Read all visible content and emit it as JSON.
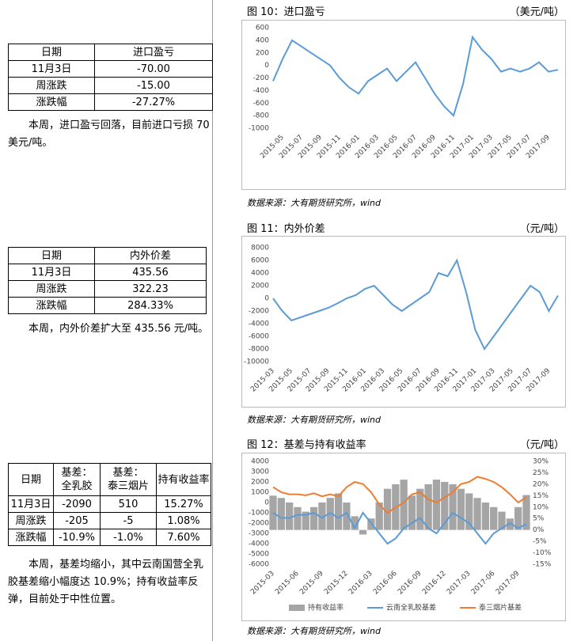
{
  "tables": [
    {
      "rows": [
        [
          "日期",
          "进口盈亏"
        ],
        [
          "11月3日",
          "-70.00"
        ],
        [
          "周涨跌",
          "-15.00"
        ],
        [
          "涨跌幅",
          "-27.27%"
        ]
      ]
    },
    {
      "rows": [
        [
          "日期",
          "内外价差"
        ],
        [
          "11月3日",
          "435.56"
        ],
        [
          "周涨跌",
          "322.23"
        ],
        [
          "涨跌幅",
          "284.33%"
        ]
      ]
    },
    {
      "rows": [
        [
          "日期",
          "基差：\n全乳胶",
          "基差：\n泰三烟片",
          "持有收益率"
        ],
        [
          "11月3日",
          "-2090",
          "510",
          "15.27%"
        ],
        [
          "周涨跌",
          "-205",
          "-5",
          "1.08%"
        ],
        [
          "涨跌幅",
          "-10.9%",
          "-1.0%",
          "7.60%"
        ]
      ]
    }
  ],
  "notes": [
    "本周，进口盈亏回落，目前进口亏损 70 美元/吨。",
    "本周，内外价差扩大至 435.56 元/吨。",
    "本周，基差均缩小，其中云南国营全乳胶基差缩小幅度达 10.9%；持有收益率反弹，目前处于中性位置。"
  ],
  "chart_data": [
    {
      "type": "line",
      "title": "图 10：进口盈亏",
      "unit": "（美元/吨）",
      "source": "数据来源：大有期货研究所，wind",
      "categories": [
        null,
        "2015-05",
        null,
        "2015-07",
        null,
        "2015-09",
        null,
        "2015-11",
        null,
        "2016-01",
        null,
        "2016-03",
        null,
        "2016-05",
        null,
        "2016-07",
        null,
        "2016-09",
        null,
        "2016-11",
        null,
        "2017-01",
        null,
        "2017-03",
        null,
        "2017-05",
        null,
        "2017-07",
        null,
        "2017-09",
        null
      ],
      "series": [
        {
          "name": "进口盈亏",
          "color": "#5b9bd5",
          "values": [
            -250,
            100,
            400,
            300,
            200,
            100,
            0,
            -200,
            -350,
            -450,
            -250,
            -150,
            -50,
            -250,
            -100,
            50,
            -200,
            -450,
            -650,
            -800,
            -300,
            450,
            250,
            100,
            -100,
            -50,
            -100,
            -50,
            50,
            -100,
            -70
          ]
        }
      ],
      "ylim": [
        -1000,
        600
      ],
      "yticks": [
        -1000,
        -800,
        -600,
        -400,
        -200,
        0,
        200,
        400,
        600
      ]
    },
    {
      "type": "line",
      "title": "图 11：内外价差",
      "unit": "（元/吨）",
      "source": "数据来源：大有期货研究所，wind",
      "categories": [
        "2015-03",
        null,
        "2015-05",
        null,
        "2015-07",
        null,
        "2015-09",
        null,
        "2015-11",
        null,
        "2016-01",
        null,
        "2016-03",
        null,
        "2016-05",
        null,
        "2016-07",
        null,
        "2016-09",
        null,
        "2016-11",
        null,
        "2017-01",
        null,
        "2017-03",
        null,
        "2017-05",
        null,
        "2017-07",
        null,
        "2017-09",
        null
      ],
      "series": [
        {
          "name": "内外价差",
          "color": "#5b9bd5",
          "values": [
            0,
            -2000,
            -3500,
            -3000,
            -2500,
            -2000,
            -1500,
            -800,
            0,
            500,
            1500,
            2000,
            500,
            -1000,
            -2000,
            -1000,
            0,
            1000,
            4000,
            3500,
            6000,
            1000,
            -5000,
            -8000,
            -6000,
            -4000,
            -2000,
            0,
            2000,
            1000,
            -2000,
            436
          ]
        }
      ],
      "ylim": [
        -10000,
        8000
      ],
      "yticks": [
        -10000,
        -8000,
        -6000,
        -4000,
        -2000,
        0,
        2000,
        4000,
        6000,
        8000
      ]
    },
    {
      "type": "line",
      "title": "图 12：基差与持有收益率",
      "unit": "（元/吨）",
      "source": "数据来源：大有期货研究所，wind",
      "legend": "bottom",
      "categories": [
        "2015-03",
        null,
        null,
        "2015-06",
        null,
        null,
        "2015-09",
        null,
        null,
        "2015-12",
        null,
        null,
        "2016-03",
        null,
        null,
        "2016-06",
        null,
        null,
        "2016-09",
        null,
        null,
        "2016-12",
        null,
        null,
        "2017-03",
        null,
        null,
        "2017-06",
        null,
        null,
        "2017-09",
        null
      ],
      "series": [
        {
          "name": "持有收益率",
          "type": "bar",
          "axis": "y2",
          "color": "#a5a5a5",
          "values": [
            15,
            14,
            12,
            10,
            8,
            10,
            12,
            14,
            16,
            12,
            6,
            -2,
            5,
            12,
            18,
            20,
            22,
            15,
            18,
            20,
            22,
            21,
            20,
            18,
            16,
            14,
            12,
            10,
            8,
            5,
            10,
            15.27
          ]
        },
        {
          "name": "云南全乳胶基差",
          "color": "#5b9bd5",
          "values": [
            -1000,
            -1500,
            -1500,
            -1200,
            -1200,
            -1000,
            -1500,
            -1000,
            -1500,
            -1000,
            -2500,
            -1000,
            -2000,
            -3000,
            -4000,
            -3500,
            -2500,
            -2000,
            -1500,
            -2500,
            -3000,
            -2000,
            -1000,
            -1500,
            -2000,
            -3000,
            -4000,
            -3000,
            -2500,
            -2000,
            -2500,
            -2090
          ]
        },
        {
          "name": "泰三烟片基差",
          "color": "#ed7d31",
          "values": [
            1500,
            1000,
            800,
            800,
            700,
            900,
            600,
            800,
            600,
            1500,
            2000,
            1800,
            1000,
            -200,
            -1000,
            -500,
            0,
            800,
            1000,
            300,
            0,
            500,
            1000,
            1800,
            2000,
            2500,
            2300,
            2000,
            1500,
            800,
            0,
            510
          ]
        }
      ],
      "ylim": [
        -6000,
        4000
      ],
      "yticks": [
        -6000,
        -5000,
        -4000,
        -3000,
        -2000,
        -1000,
        0,
        1000,
        2000,
        3000,
        4000
      ],
      "y2lim": [
        -15,
        30
      ],
      "y2ticks": [
        {
          "value": -15,
          "label": "-15%"
        },
        {
          "value": -10,
          "label": "-10%"
        },
        {
          "value": -5,
          "label": "-5%"
        },
        {
          "value": 0,
          "label": "0%"
        },
        {
          "value": 5,
          "label": "5%"
        },
        {
          "value": 10,
          "label": "10%"
        },
        {
          "value": 15,
          "label": "15%"
        },
        {
          "value": 20,
          "label": "20%"
        },
        {
          "value": 25,
          "label": "25%"
        },
        {
          "value": 30,
          "label": "30%"
        }
      ]
    }
  ]
}
